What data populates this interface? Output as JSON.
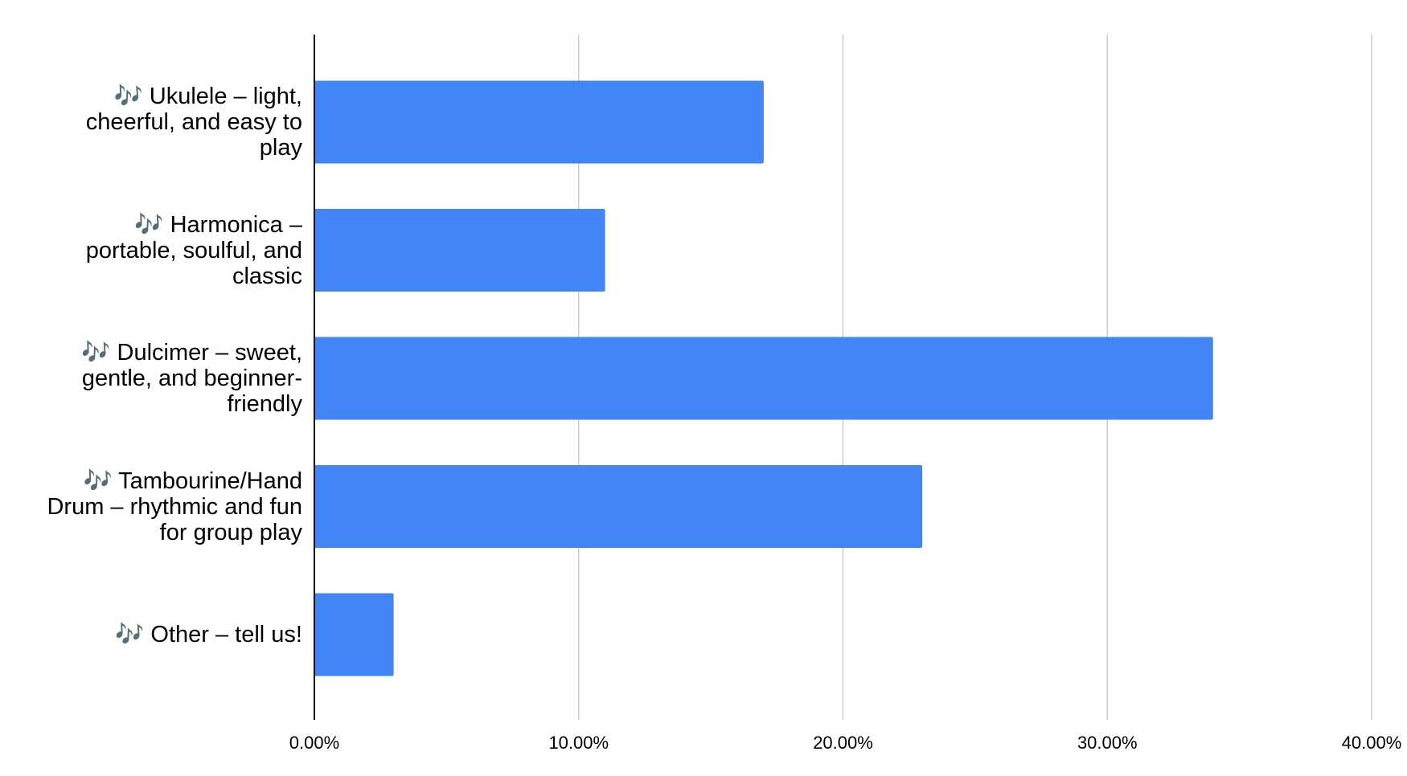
{
  "chart_data": {
    "type": "bar",
    "orientation": "horizontal",
    "categories": [
      "🎶 Ukulele – light, cheerful, and easy to play",
      "🎶 Harmonica – portable, soulful, and classic",
      "🎶 Dulcimer – sweet, gentle, and beginner-friendly",
      "🎶 Tambourine/Hand Drum – rhythmic and fun for group play",
      "🎶 Other – tell us!"
    ],
    "values": [
      17,
      11,
      34,
      23,
      3
    ],
    "color": "#4285f4",
    "xlim": [
      0,
      40
    ],
    "xticks": [
      {
        "value": 0,
        "label": "0.00%"
      },
      {
        "value": 10,
        "label": "10.00%"
      },
      {
        "value": 20,
        "label": "20.00%"
      },
      {
        "value": 30,
        "label": "30.00%"
      },
      {
        "value": 40,
        "label": "40.00%"
      }
    ],
    "grid": true
  }
}
